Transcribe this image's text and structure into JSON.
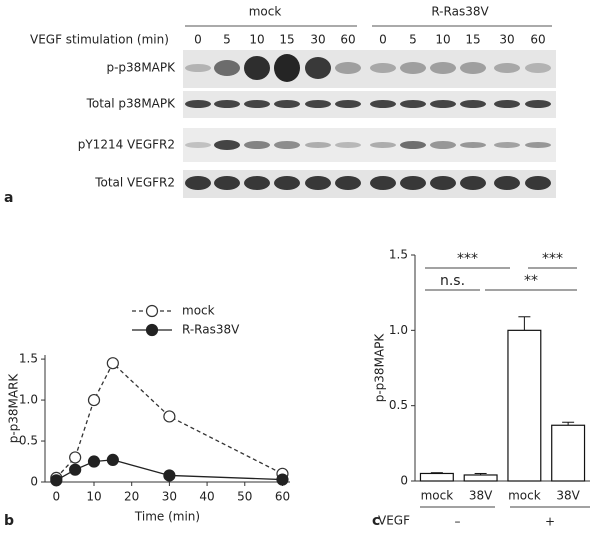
{
  "blot": {
    "groups": [
      "mock",
      "R-Ras38V"
    ],
    "stimulation_label": "VEGF stimulation (min)",
    "lanes": [
      0,
      5,
      10,
      15,
      30,
      60,
      0,
      5,
      10,
      15,
      30,
      60
    ],
    "rows": [
      "p-p38MAPK",
      "Total p38MAPK",
      "pY1214 VEGFR2",
      "Total VEGFR2"
    ]
  },
  "panel_labels": [
    "a",
    "b",
    "c"
  ],
  "chart_data": [
    {
      "type": "line",
      "xlabel": "Time (min)",
      "ylabel": "p-p38MARK",
      "x": [
        0,
        5,
        10,
        15,
        30,
        60
      ],
      "series": [
        {
          "name": "mock",
          "color": "#333333",
          "style": "dashed",
          "marker": "open",
          "values": [
            0.05,
            0.3,
            1.0,
            1.45,
            0.8,
            0.1
          ]
        },
        {
          "name": "R-Ras38V",
          "color": "#222222",
          "style": "solid",
          "marker": "filled",
          "values": [
            0.02,
            0.15,
            0.25,
            0.27,
            0.08,
            0.03
          ]
        }
      ],
      "xlim": [
        -3,
        62
      ],
      "xticks": [
        0,
        10,
        20,
        30,
        40,
        50,
        60
      ],
      "ylim": [
        0,
        1.55
      ],
      "yticks": [
        0,
        0.5,
        {
          "value": 1.0,
          "label": "1.0"
        },
        1.5
      ],
      "legend": "upper right"
    },
    {
      "type": "bar",
      "ylabel": "p-p38MAPK",
      "categories": [
        "mock",
        "38V",
        "mock",
        "38V"
      ],
      "values": [
        0.05,
        0.04,
        1.0,
        0.37
      ],
      "errors": [
        0.005,
        0.01,
        0.09,
        0.02
      ],
      "color": "#ffffff",
      "edgecolor": "#111111",
      "ylim": [
        0,
        1.5
      ],
      "yticks": [
        0,
        0.5,
        {
          "value": 1.0,
          "label": "1.0"
        },
        1.5
      ],
      "annotations": [
        "***",
        "***",
        "n.s.",
        "**"
      ],
      "group_label": "VEGF",
      "groups": [
        "–",
        "+"
      ]
    }
  ]
}
